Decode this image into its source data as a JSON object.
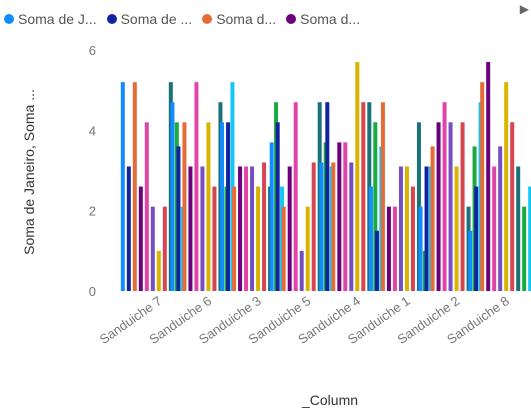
{
  "legend": {
    "items": [
      {
        "label": "Soma de J...",
        "color": "#118DFF"
      },
      {
        "label": "Soma de ...",
        "color": "#12239E"
      },
      {
        "label": "Soma d...",
        "color": "#E66C37"
      },
      {
        "label": "Soma d...",
        "color": "#6B007B"
      }
    ],
    "next_icon": "▶"
  },
  "chart_data": {
    "type": "bar",
    "categories": [
      "Sanduiche 7",
      "Sanduiche 6",
      "Sanduiche 3",
      "Sanduiche 5",
      "Sanduiche 4",
      "Sanduiche 1",
      "Sanduiche 2",
      "Sanduiche 8"
    ],
    "xlabel": "_Column",
    "ylabel": "Soma de Janeiro, Soma ...",
    "ylim": [
      0,
      6
    ],
    "yticks": [
      0,
      2,
      4,
      6
    ],
    "grid": false,
    "legend_position": "top",
    "series": [
      {
        "color": "#118DFF",
        "values": [
          5.2,
          4.7,
          4.2,
          3.7,
          3.2,
          2.6,
          2.1,
          1.5
        ]
      },
      {
        "color": "#12239E",
        "values": [
          3.1,
          3.6,
          4.2,
          4.2,
          4.7,
          1.5,
          3.1,
          2.6
        ]
      },
      {
        "color": "#E66C37",
        "values": [
          5.2,
          4.2,
          2.6,
          2.1,
          3.2,
          4.7,
          3.6,
          5.2
        ]
      },
      {
        "color": "#6B007B",
        "values": [
          2.6,
          3.1,
          3.1,
          3.1,
          3.7,
          2.1,
          4.2,
          5.7
        ]
      },
      {
        "color": "#E044A7",
        "values": [
          4.2,
          5.2,
          3.1,
          4.7,
          3.7,
          2.1,
          4.7,
          3.1
        ]
      },
      {
        "color": "#744EC2",
        "values": [
          2.1,
          3.1,
          3.1,
          1.0,
          3.2,
          3.1,
          4.2,
          3.6
        ]
      },
      {
        "color": "#D9B300",
        "values": [
          1.0,
          4.2,
          2.6,
          2.1,
          5.7,
          3.1,
          3.1,
          5.2
        ]
      },
      {
        "color": "#D64550",
        "values": [
          2.1,
          2.6,
          3.2,
          3.2,
          4.7,
          2.6,
          4.2,
          4.2
        ]
      },
      {
        "color": "#197278",
        "values": [
          5.2,
          4.7,
          2.6,
          4.7,
          4.7,
          4.2,
          2.1,
          3.1
        ]
      },
      {
        "color": "#1AAB40",
        "values": [
          4.2,
          2.6,
          4.7,
          3.7,
          4.2,
          1.0,
          3.6,
          2.1
        ]
      },
      {
        "color": "#15C6F4",
        "values": [
          2.1,
          5.2,
          2.6,
          3.1,
          3.6,
          3.1,
          4.7,
          2.6
        ]
      }
    ]
  }
}
